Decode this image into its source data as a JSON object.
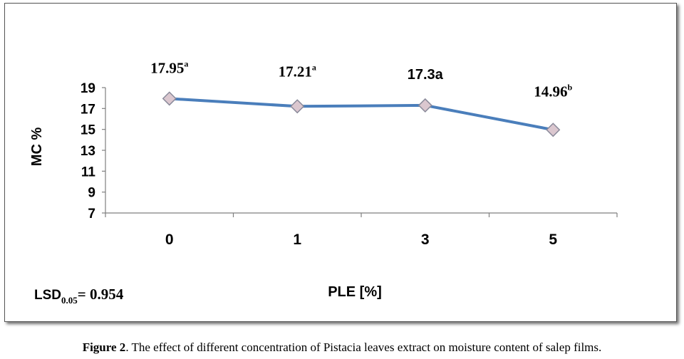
{
  "chart_data": {
    "type": "line",
    "categories": [
      "0",
      "1",
      "3",
      "5"
    ],
    "series": [
      {
        "values": [
          17.95,
          17.21,
          17.3,
          14.96
        ]
      }
    ],
    "data_labels": [
      {
        "value": "17.95",
        "sup": "a"
      },
      {
        "value": "17.21",
        "sup": "a"
      },
      {
        "value": "17.3a",
        "sup": ""
      },
      {
        "value": "14.96",
        "sup": "b"
      }
    ],
    "xlabel": "PLE [%]",
    "ylabel": "MC %",
    "ylim": [
      7,
      19
    ],
    "yticks": [
      19,
      17,
      15,
      13,
      11,
      9,
      7
    ],
    "grid": false,
    "line_color": "#4a7ebb",
    "marker_fill": "#dbc7cf",
    "marker_stroke": "#8a8a9a",
    "annotation": {
      "prefix": "LSD",
      "sub": "0.05",
      "value": "= 0.954"
    }
  },
  "caption": {
    "label": "Figure 2",
    "text": ". The effect of different concentration of Pistacia leaves extract on moisture content of salep films."
  }
}
